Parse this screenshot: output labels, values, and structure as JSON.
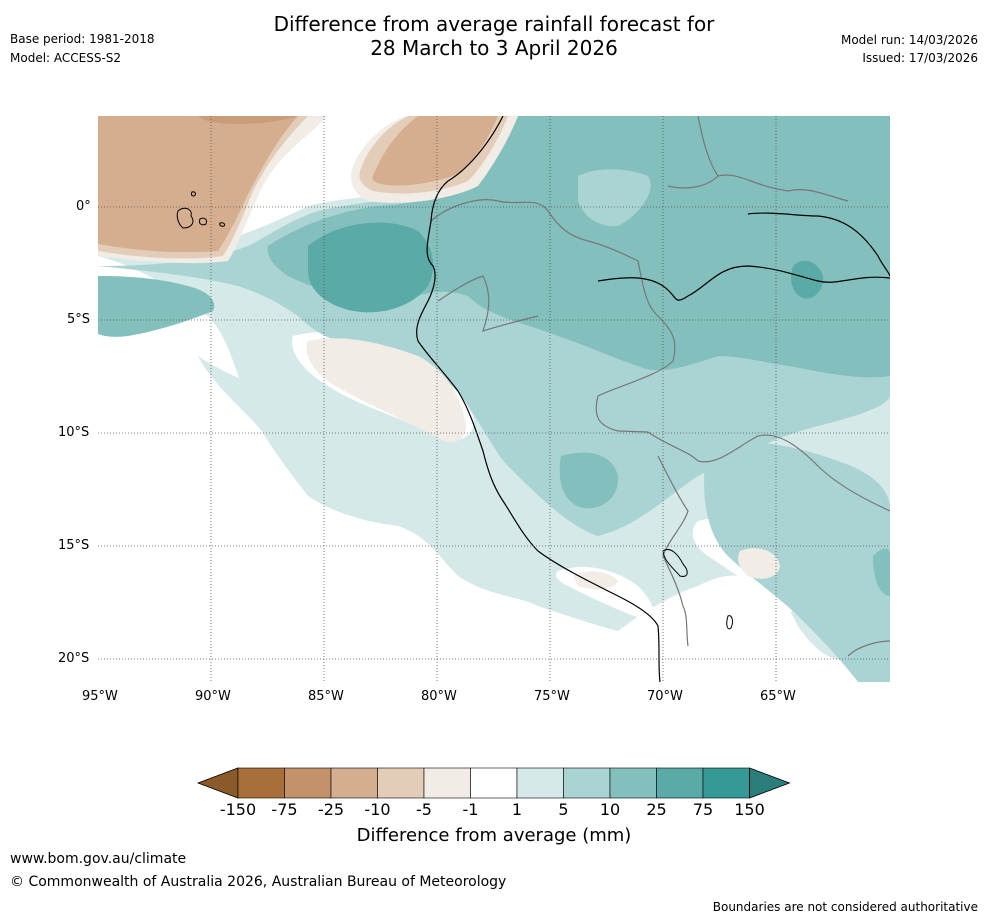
{
  "header": {
    "title_line1": "Difference from average rainfall forecast for",
    "title_line2": "28 March to 3 April 2026",
    "base_period": "Base period: 1981-2018",
    "model": "Model: ACCESS-S2",
    "model_run": "Model run: 14/03/2026",
    "issued": "Issued: 17/03/2026"
  },
  "axes": {
    "lat_labels": [
      "0°",
      "5°S",
      "10°S",
      "15°S",
      "20°S"
    ],
    "lon_labels": [
      "95°W",
      "90°W",
      "85°W",
      "80°W",
      "75°W",
      "70°W",
      "65°W"
    ]
  },
  "colorbar": {
    "title": "Difference from average (mm)",
    "ticks": [
      "-150",
      "-75",
      "-25",
      "-10",
      "-5",
      "-1",
      "1",
      "5",
      "10",
      "25",
      "75",
      "150"
    ],
    "colors": [
      "#8a5a2b",
      "#a86f3a",
      "#c3916a",
      "#d4ae8f",
      "#e3cdb9",
      "#f1ece6",
      "#ffffff",
      "#d5e9e8",
      "#aad4d3",
      "#82bfbd",
      "#5aaaa7",
      "#359a96",
      "#2a7d7a"
    ]
  },
  "footer": {
    "url": "www.bom.gov.au/climate",
    "copyright": "© Commonwealth of Australia 2026, Australian Bureau of Meteorology",
    "disclaimer": "Boundaries are not considered authoritative"
  }
}
